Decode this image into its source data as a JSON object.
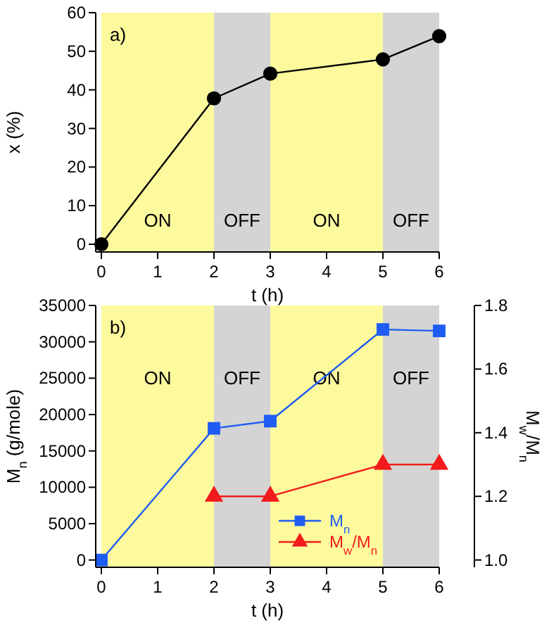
{
  "chart_data": [
    {
      "type": "line",
      "xlabel": "t (h)",
      "ylabel": "x (%)",
      "annotations": [
        "a)"
      ],
      "x": [
        0,
        2,
        3,
        5,
        6
      ],
      "xlim": [
        -0.1,
        6
      ],
      "xticks": [
        0,
        1,
        2,
        3,
        4,
        5,
        6
      ],
      "ylim": [
        -2,
        60
      ],
      "yticks": [
        0,
        10,
        20,
        30,
        40,
        50,
        60
      ],
      "series": [
        {
          "color": "#000000",
          "marker": "circle",
          "values": [
            0,
            37.8,
            44.2,
            47.9,
            53.9
          ]
        }
      ],
      "bands": [
        {
          "axis": "x",
          "from": 0,
          "to": 2,
          "label": "ON",
          "color": "#fdfa9e"
        },
        {
          "axis": "x",
          "from": 2,
          "to": 3,
          "label": "OFF",
          "color": "#d4d4d4"
        },
        {
          "axis": "x",
          "from": 3,
          "to": 5,
          "label": "ON",
          "color": "#fdfa9e"
        },
        {
          "axis": "x",
          "from": 5,
          "to": 6,
          "label": "OFF",
          "color": "#d4d4d4"
        }
      ]
    },
    {
      "type": "line",
      "xlabel": "t (h)",
      "ylabel": "M$_{n}$ (g/mole)",
      "y2label": "M$_{w}$/M$_{n}$",
      "annotations": [
        "b)"
      ],
      "x": [
        0,
        2,
        3,
        5,
        6
      ],
      "xlim": [
        -0.1,
        6
      ],
      "xticks": [
        0,
        1,
        2,
        3,
        4,
        5,
        6
      ],
      "ylim": [
        -1000,
        35000
      ],
      "yticks": [
        0,
        5000,
        10000,
        15000,
        20000,
        25000,
        30000,
        35000
      ],
      "y2lim": [
        0.977,
        1.8
      ],
      "y2ticks": [
        {
          "value": 1,
          "label": "1.0"
        },
        1.2,
        1.4,
        1.6,
        1.8
      ],
      "legend": "bottom",
      "series": [
        {
          "name": "M$_{n}$",
          "color": "#1f5cf2",
          "marker": "square",
          "values": [
            0,
            18100,
            19100,
            31700,
            31500
          ]
        },
        {
          "name": "M$_{w}$/M$_{n}$",
          "color": "#f21a1a",
          "marker": "triangle",
          "axis": "y2",
          "x": [
            2,
            3,
            5,
            6
          ],
          "values": [
            1.2,
            1.2,
            1.3,
            1.3
          ]
        }
      ],
      "bands": [
        {
          "axis": "x",
          "from": 0,
          "to": 2,
          "label": "ON",
          "color": "#fdfa9e"
        },
        {
          "axis": "x",
          "from": 2,
          "to": 3,
          "label": "OFF",
          "color": "#d4d4d4"
        },
        {
          "axis": "x",
          "from": 3,
          "to": 5,
          "label": "ON",
          "color": "#fdfa9e"
        },
        {
          "axis": "x",
          "from": 5,
          "to": 6,
          "label": "OFF",
          "color": "#d4d4d4"
        }
      ]
    }
  ]
}
